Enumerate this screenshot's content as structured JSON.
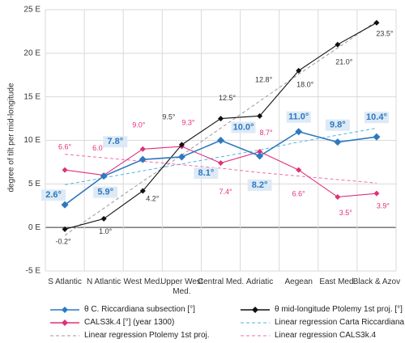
{
  "chart_data": {
    "type": "line",
    "y_label": "degree of tilt per mid-longitude",
    "categories": [
      "S Atlantic",
      "N Atlantic",
      "West Med.",
      "Upper West Med.",
      "Central Med.",
      "Adriatic",
      "Aegean",
      "East Med.",
      "Black & Azov"
    ],
    "ylim": [
      -5,
      25
    ],
    "yticks": [
      {
        "value": -5,
        "label": "-5 E"
      },
      {
        "value": 0,
        "label": "0 E"
      },
      {
        "value": 5,
        "label": "5 E"
      },
      {
        "value": 10,
        "label": "10 E"
      },
      {
        "value": 15,
        "label": "15 E"
      },
      {
        "value": 20,
        "label": "20 E"
      },
      {
        "value": 25,
        "label": "25 E"
      }
    ],
    "grid": true,
    "series": [
      {
        "name": "θ C. Riccardiana subsection [°]",
        "color": "#2e78c0",
        "marker": true,
        "values": [
          2.6,
          5.9,
          7.8,
          8.1,
          10.0,
          8.2,
          11.0,
          9.8,
          10.4
        ],
        "value_labels": [
          "2.6°",
          "5.9°",
          "7.8°",
          "8.1°",
          "10.0°",
          "8.2°",
          "11.0°",
          "9.8°",
          "10.4°"
        ]
      },
      {
        "name": "θ mid-longitude Ptolemy 1st proj. [°]",
        "color": "#111111",
        "marker": true,
        "values": [
          -0.2,
          1.0,
          4.2,
          9.5,
          12.5,
          12.8,
          18.0,
          21.0,
          23.5
        ],
        "value_labels": [
          "-0.2°",
          "1.0°",
          "4.2°",
          "9.5°",
          "12.5°",
          "12.8°",
          "18.0°",
          "21.0°",
          "23.5°"
        ]
      },
      {
        "name": "CALS3k.4 [°] (year 1300)",
        "color": "#e0307a",
        "marker": true,
        "values": [
          6.6,
          6.0,
          9.0,
          9.3,
          7.4,
          8.7,
          6.6,
          3.5,
          3.9
        ],
        "value_labels": [
          "6.6°",
          "6.0°",
          "9.0°",
          "9.3°",
          "7.4°",
          "8.7°",
          "6.6°",
          "3.5°",
          "3.9°"
        ]
      },
      {
        "name": "Linear regression Carta Riccardiana",
        "color": "#4fb3e8",
        "dashed": true,
        "values": [
          4.9,
          5.7,
          6.5,
          7.3,
          8.1,
          8.9,
          9.8,
          10.6,
          11.4
        ]
      },
      {
        "name": "Linear regression Ptolemy 1st proj.",
        "color": "#999999",
        "dashed": true,
        "values": [
          -0.9,
          2.2,
          5.3,
          8.3,
          11.4,
          14.5,
          17.6,
          20.6,
          23.7
        ]
      },
      {
        "name": "Linear regression CALS3k.4",
        "color": "#ee6fa6",
        "dashed": true,
        "values": [
          8.4,
          8.0,
          7.6,
          7.2,
          6.8,
          6.3,
          5.9,
          5.5,
          5.1
        ]
      }
    ]
  }
}
